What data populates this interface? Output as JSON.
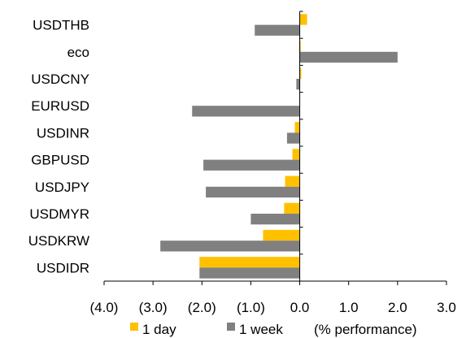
{
  "chart_data": {
    "type": "bar",
    "orientation": "horizontal",
    "categories": [
      "USDTHB",
      "eco",
      "USDCNY",
      "EURUSD",
      "USDINR",
      "GBPUSD",
      "USDJPY",
      "USDMYR",
      "USDKRW",
      "USDIDR"
    ],
    "series": [
      {
        "name": "1 day",
        "color": "#FFC000",
        "values": [
          0.15,
          0.02,
          0.03,
          0.0,
          -0.1,
          -0.15,
          -0.3,
          -0.32,
          -0.75,
          -2.05
        ]
      },
      {
        "name": "1 week",
        "color": "#808080",
        "values": [
          -0.92,
          2.0,
          -0.07,
          -2.2,
          -0.26,
          -1.97,
          -1.92,
          -1.0,
          -2.85,
          -2.05
        ]
      }
    ],
    "xlim": [
      -4.0,
      3.0
    ],
    "xticks": [
      -4.0,
      -3.0,
      -2.0,
      -1.0,
      0.0,
      1.0,
      2.0,
      3.0
    ],
    "xtick_labels": [
      "(4.0)",
      "(3.0)",
      "(2.0)",
      "(1.0)",
      "0.0",
      "1.0",
      "2.0",
      "3.0"
    ],
    "xlabel": "(% performance)",
    "grid": false,
    "legend_position": "bottom"
  }
}
